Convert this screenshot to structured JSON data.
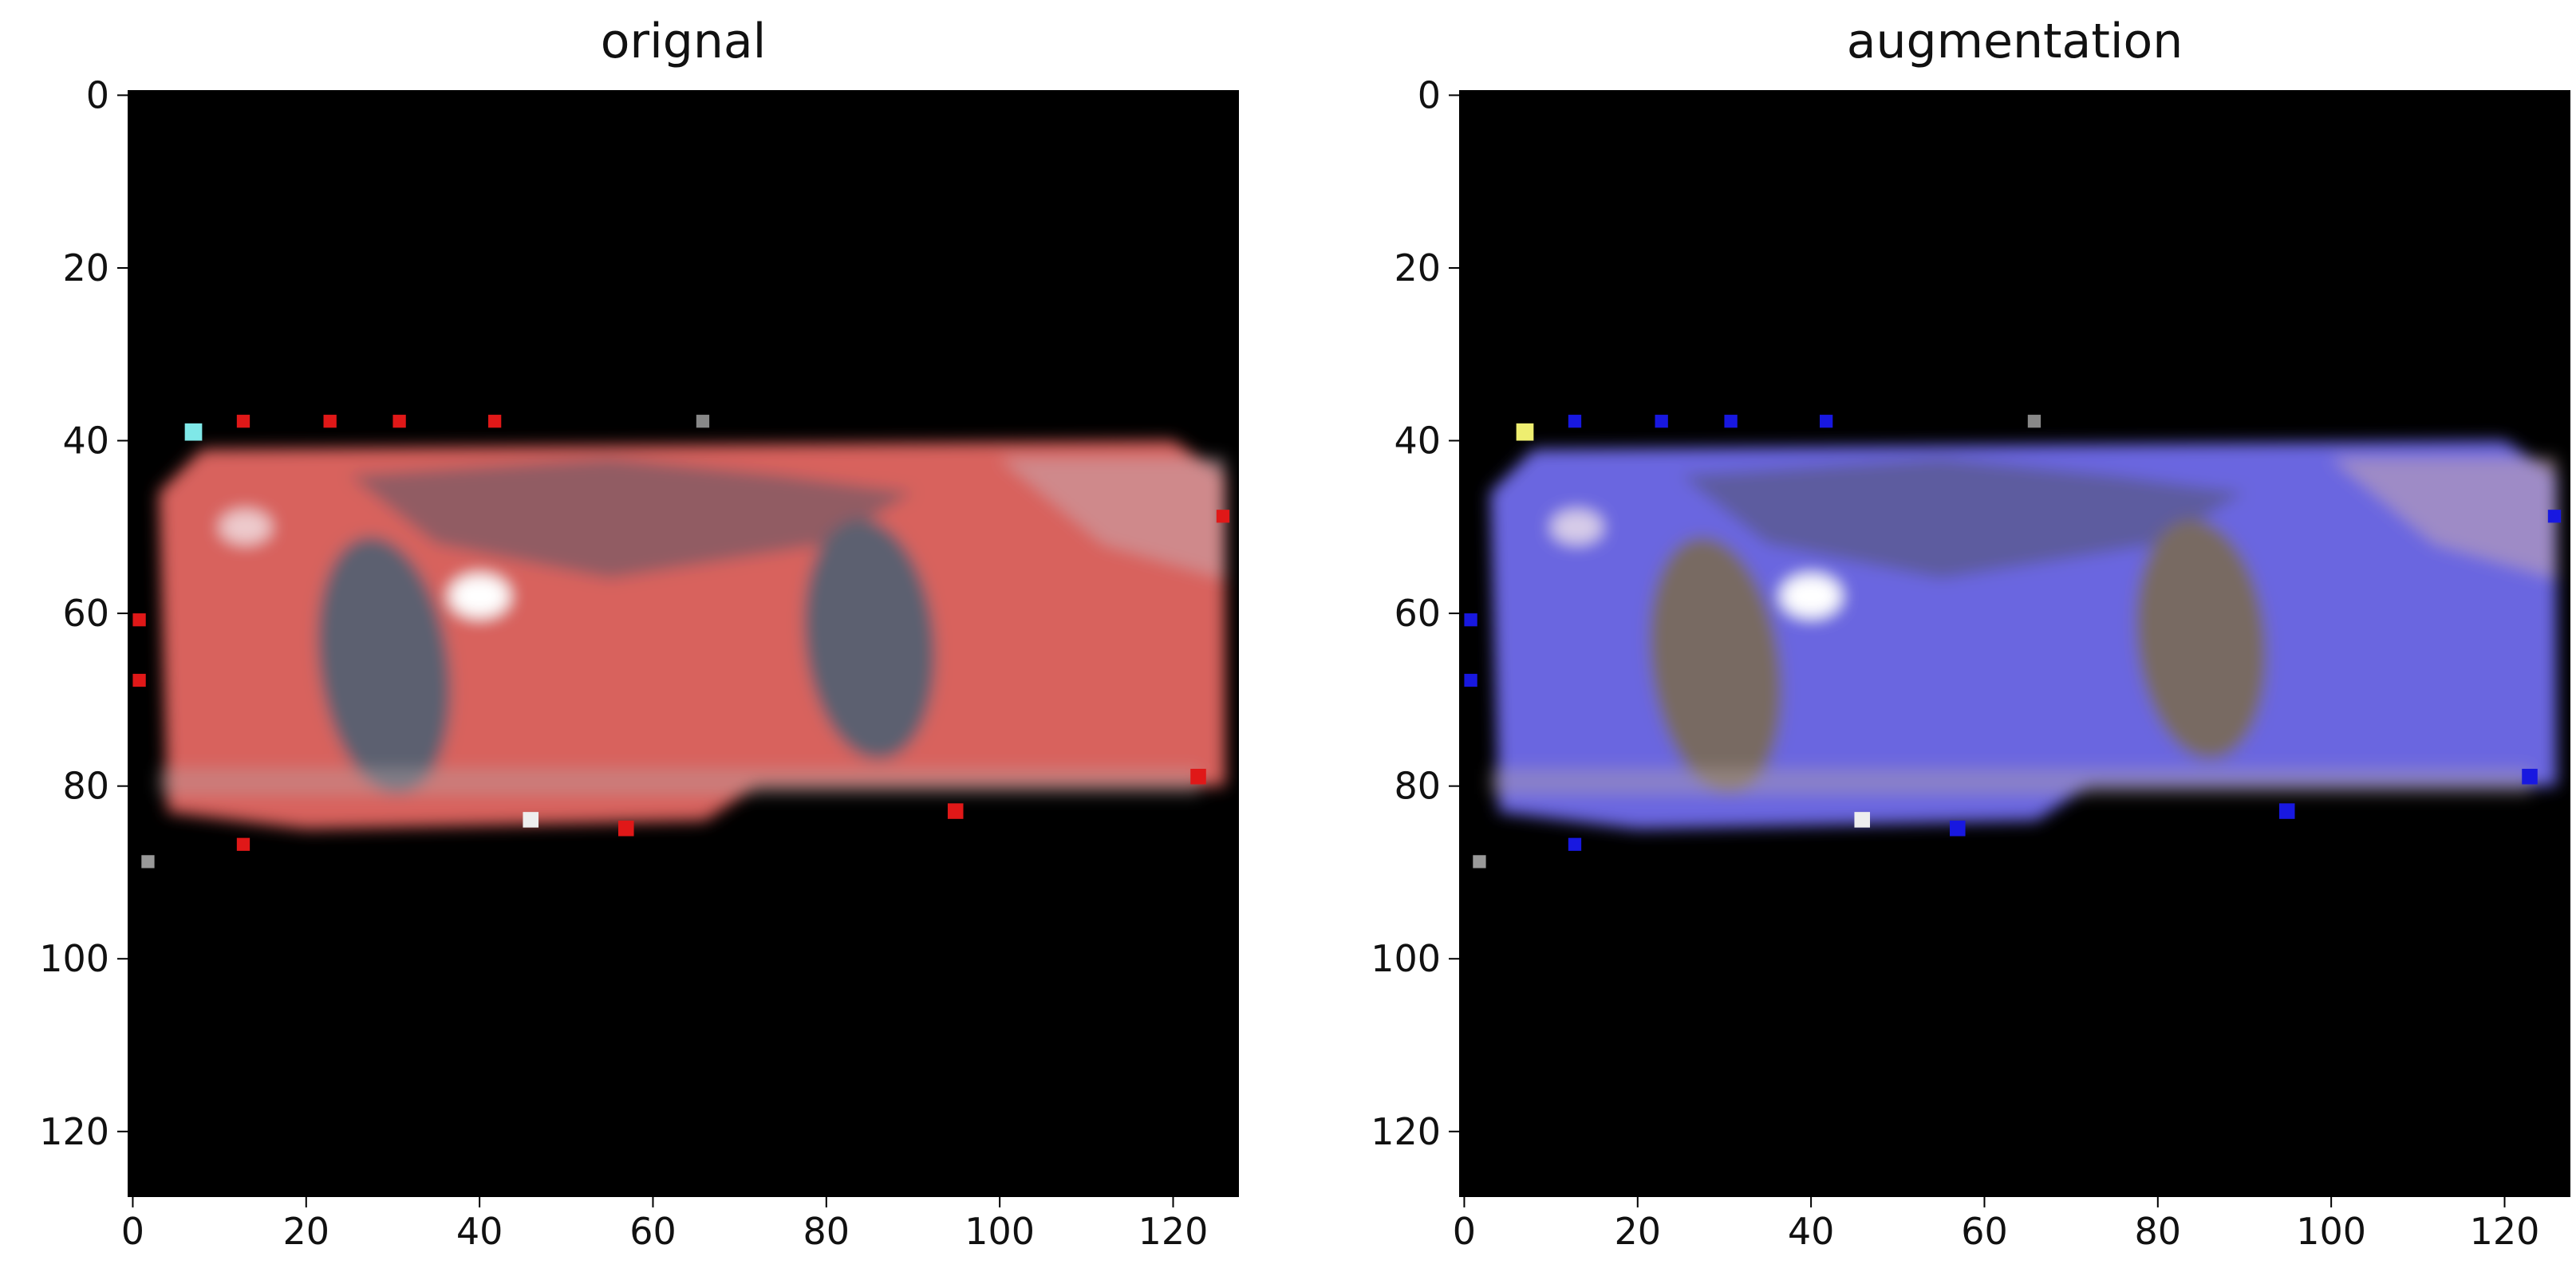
{
  "chart_data": [
    {
      "type": "image",
      "title": "orignal",
      "xlim": [
        -0.5,
        127.5
      ],
      "ylim": [
        127.5,
        -0.5
      ],
      "xticks": [
        0,
        20,
        40,
        60,
        80,
        100,
        120
      ],
      "yticks": [
        0,
        20,
        40,
        60,
        80,
        100,
        120
      ]
    },
    {
      "type": "image",
      "title": "augmentation",
      "xlim": [
        -0.5,
        127.5
      ],
      "ylim": [
        127.5,
        -0.5
      ],
      "xticks": [
        0,
        20,
        40,
        60,
        80,
        100,
        120
      ],
      "yticks": [
        0,
        20,
        40,
        60,
        80,
        100,
        120
      ]
    }
  ]
}
